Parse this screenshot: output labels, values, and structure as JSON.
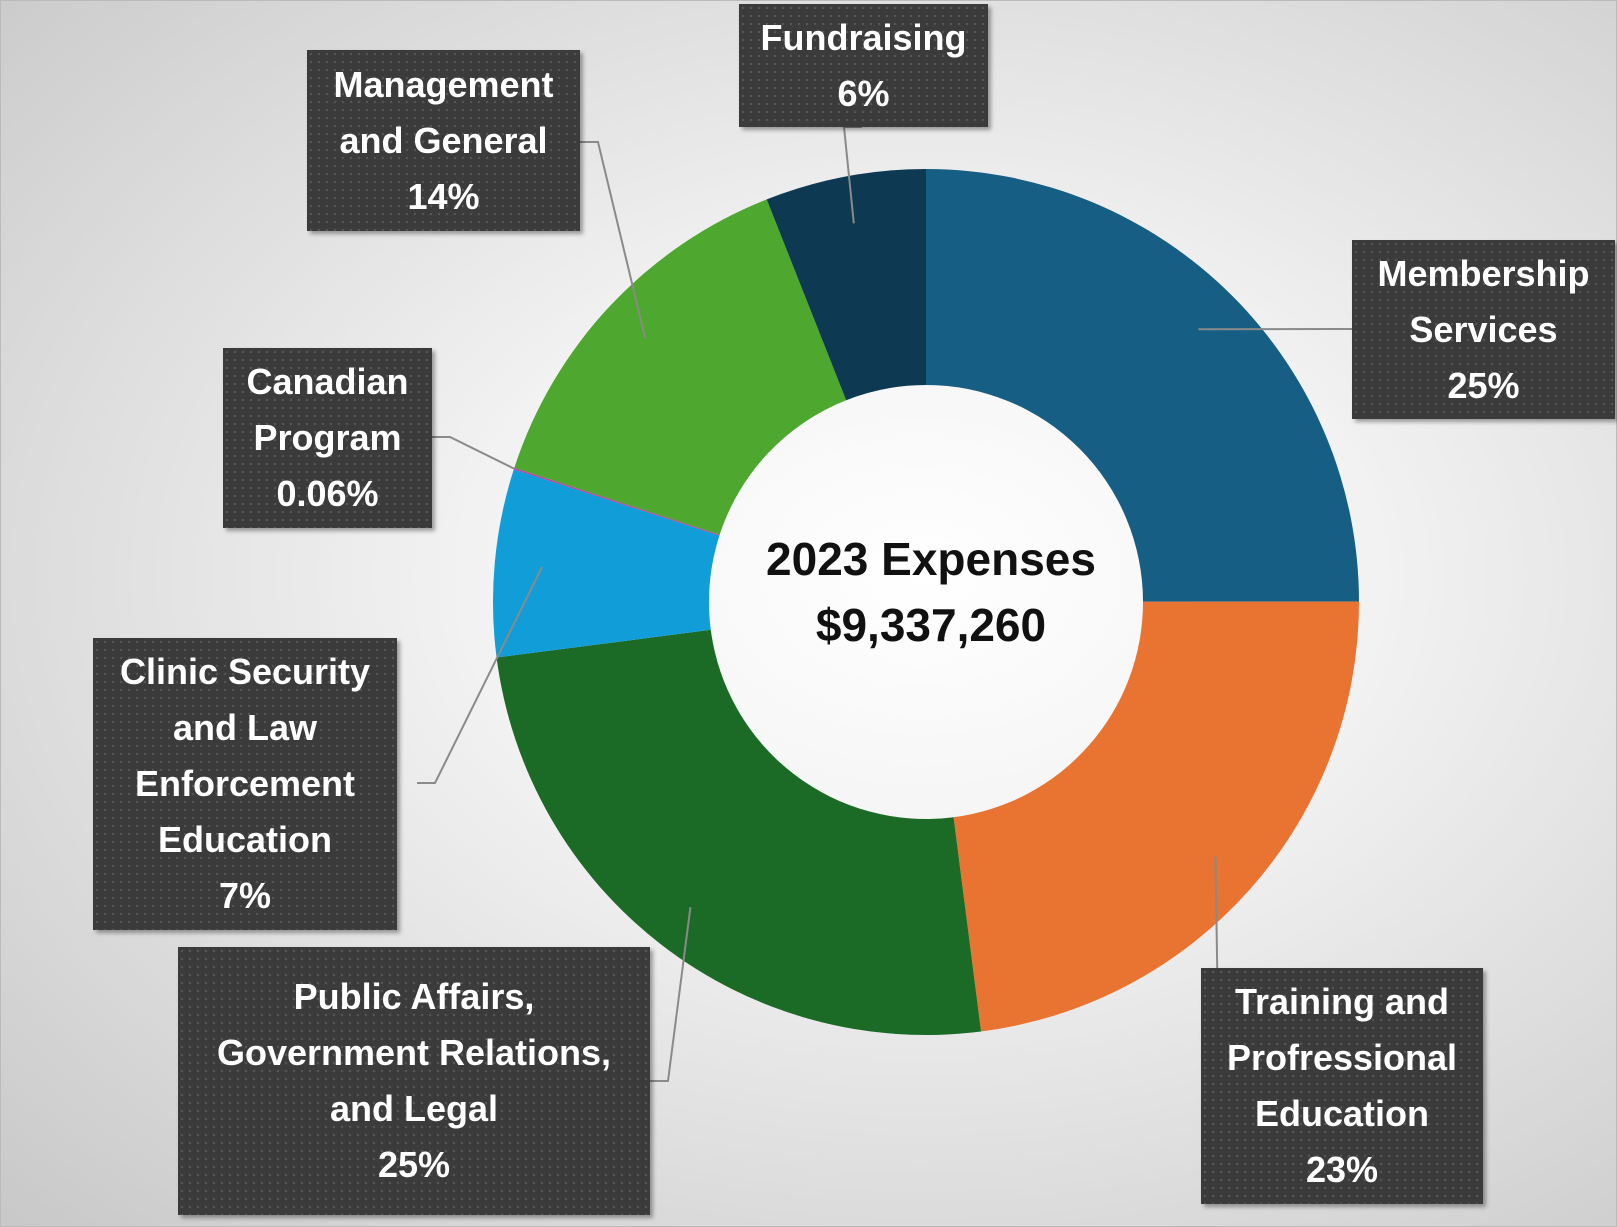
{
  "chart_data": {
    "type": "donut",
    "title": "2023 Expenses",
    "subtitle": "$9,337,260",
    "categories": [
      "Membership Services",
      "Training and Profressional Education",
      "Public Affairs, Government Relations, and Legal",
      "Clinic Security and Law Enforcement Education",
      "Canadian Program",
      "Management and General",
      "Fundraising"
    ],
    "values": [
      25,
      23,
      25,
      7,
      0.06,
      14,
      6
    ],
    "value_labels": [
      "25%",
      "23%",
      "25%",
      "7%",
      "0.06%",
      "14%",
      "6%"
    ],
    "colors": [
      "#175e84",
      "#e97432",
      "#1b6b26",
      "#119dd8",
      "#c03fa0",
      "#4ea72e",
      "#0d3a52"
    ]
  }
}
